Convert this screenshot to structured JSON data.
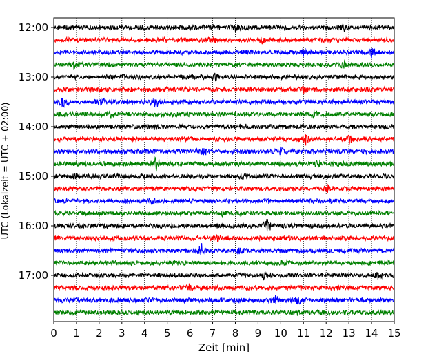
{
  "chart_data": {
    "type": "line",
    "title": "",
    "xlabel": "Zeit  [min]",
    "ylabel": "UTC (Lokalzeit = UTC + 02:00)",
    "xlim": [
      0,
      15
    ],
    "x_ticks": [
      "0",
      "1",
      "2",
      "3",
      "4",
      "5",
      "6",
      "7",
      "8",
      "9",
      "10",
      "11",
      "12",
      "13",
      "14",
      "15"
    ],
    "y_tick_labels": [
      "12:00",
      "13:00",
      "14:00",
      "15:00",
      "16:00",
      "17:00"
    ],
    "grid": "vertical dotted",
    "legend": "none",
    "trace_colors": [
      "#000000",
      "#ff0000",
      "#0000ff",
      "#008000"
    ],
    "traces": [
      {
        "start": "12:00",
        "events": [
          {
            "x": 8.0,
            "amp": 4
          },
          {
            "x": 12.8,
            "amp": 4
          }
        ]
      },
      {
        "start": "12:15",
        "events": [
          {
            "x": 7.0,
            "amp": 5
          },
          {
            "x": 9.2,
            "amp": 4
          }
        ]
      },
      {
        "start": "12:30",
        "events": [
          {
            "x": 11.0,
            "amp": 4
          },
          {
            "x": 14.0,
            "amp": 7
          }
        ]
      },
      {
        "start": "12:45",
        "events": [
          {
            "x": 0.9,
            "amp": 5
          },
          {
            "x": 12.8,
            "amp": 5
          }
        ]
      },
      {
        "start": "13:00",
        "events": [
          {
            "x": 3.1,
            "amp": 4
          },
          {
            "x": 7.1,
            "amp": 4
          }
        ]
      },
      {
        "start": "13:15",
        "events": [
          {
            "x": 11.0,
            "amp": 4
          }
        ]
      },
      {
        "start": "13:30",
        "events": [
          {
            "x": 0.4,
            "amp": 9
          },
          {
            "x": 2.1,
            "amp": 5
          },
          {
            "x": 4.5,
            "amp": 8
          }
        ]
      },
      {
        "start": "13:45",
        "events": [
          {
            "x": 2.5,
            "amp": 4
          },
          {
            "x": 11.5,
            "amp": 6
          }
        ]
      },
      {
        "start": "14:00",
        "events": [
          {
            "x": 4.4,
            "amp": 4
          },
          {
            "x": 8.4,
            "amp": 4
          }
        ]
      },
      {
        "start": "14:15",
        "events": [
          {
            "x": 11.1,
            "amp": 9
          },
          {
            "x": 13.0,
            "amp": 7
          }
        ]
      },
      {
        "start": "14:30",
        "events": [
          {
            "x": 6.6,
            "amp": 5
          },
          {
            "x": 10.0,
            "amp": 4
          }
        ]
      },
      {
        "start": "14:45",
        "events": [
          {
            "x": 4.5,
            "amp": 10
          },
          {
            "x": 11.6,
            "amp": 4
          }
        ]
      },
      {
        "start": "15:00",
        "events": [
          {
            "x": 1.0,
            "amp": 4
          },
          {
            "x": 8.3,
            "amp": 4
          }
        ]
      },
      {
        "start": "15:15",
        "events": [
          {
            "x": 12.1,
            "amp": 4
          }
        ]
      },
      {
        "start": "15:30",
        "events": [
          {
            "x": 4.3,
            "amp": 5
          }
        ]
      },
      {
        "start": "15:45",
        "events": [
          {
            "x": 7.5,
            "amp": 4
          }
        ]
      },
      {
        "start": "16:00",
        "events": [
          {
            "x": 9.4,
            "amp": 9
          }
        ]
      },
      {
        "start": "16:15",
        "events": [
          {
            "x": 7.2,
            "amp": 4
          }
        ]
      },
      {
        "start": "16:30",
        "events": [
          {
            "x": 6.5,
            "amp": 10
          },
          {
            "x": 8.2,
            "amp": 4
          }
        ]
      },
      {
        "start": "16:45",
        "events": [
          {
            "x": 10.1,
            "amp": 4
          }
        ]
      },
      {
        "start": "17:00",
        "events": [
          {
            "x": 9.3,
            "amp": 4
          },
          {
            "x": 14.3,
            "amp": 4
          }
        ]
      },
      {
        "start": "17:15",
        "events": [
          {
            "x": 6.0,
            "amp": 5
          }
        ]
      },
      {
        "start": "17:30",
        "events": [
          {
            "x": 9.8,
            "amp": 6
          },
          {
            "x": 10.8,
            "amp": 6
          }
        ]
      },
      {
        "start": "17:45",
        "events": [
          {
            "x": 10.7,
            "amp": 4
          }
        ]
      }
    ]
  }
}
